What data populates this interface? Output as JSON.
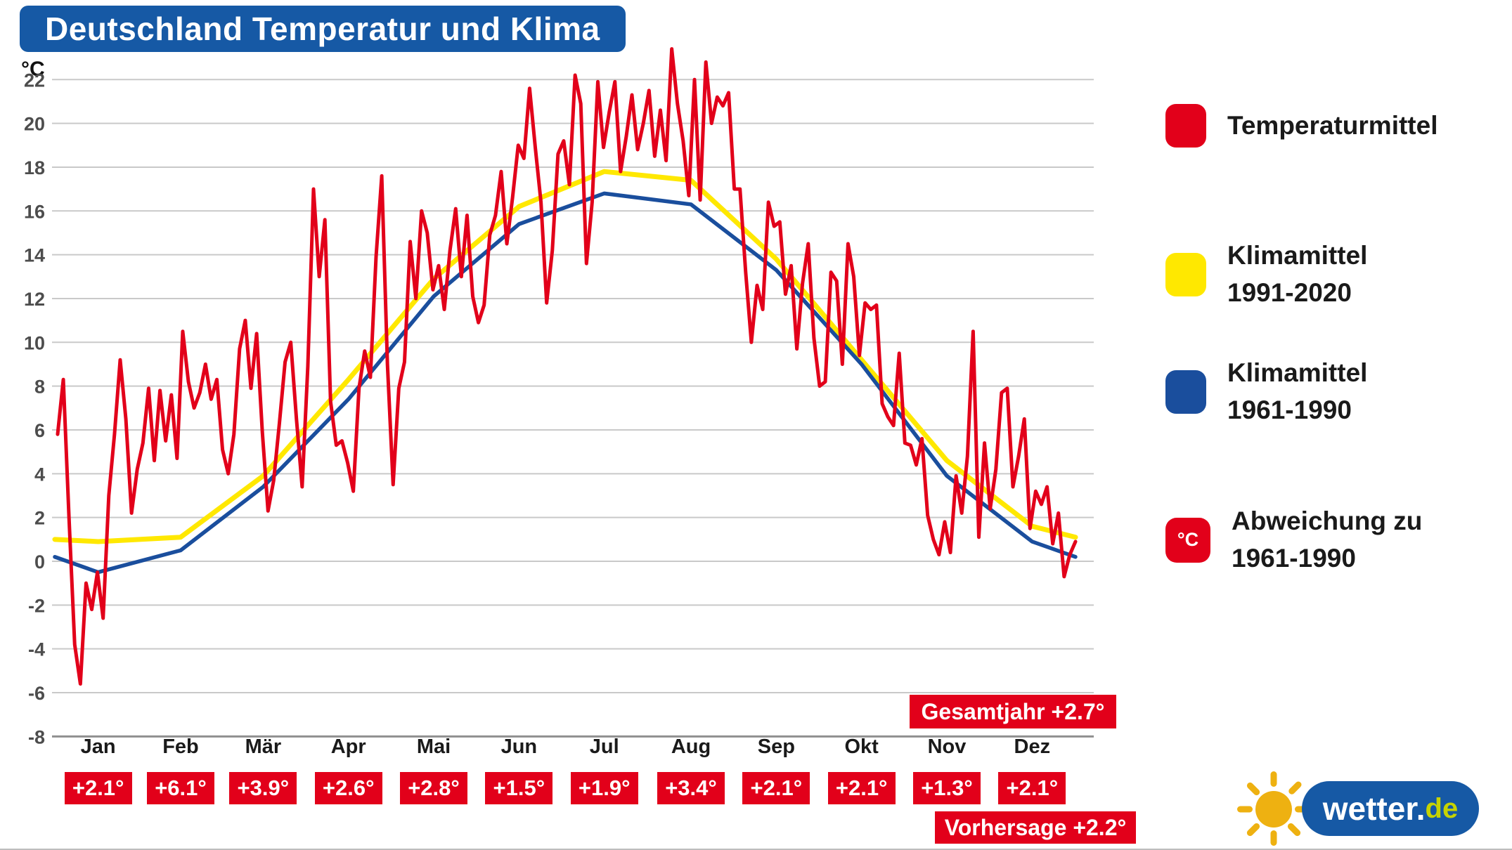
{
  "title": "Deutschland Temperatur und Klima",
  "y_axis_unit": "°C",
  "gesamtjahr_label": "Gesamtjahr +2.7°",
  "vorhersage_label": "Vorhersage +2.2°",
  "legend": {
    "items": [
      {
        "id": "temperaturmittel",
        "color": "#e2001a",
        "line1": "Temperaturmittel",
        "line2": ""
      },
      {
        "id": "klimamittel-1991-2020",
        "color": "#ffe800",
        "line1": "Klimamittel",
        "line2": "1991-2020"
      },
      {
        "id": "klimamittel-1961-1990",
        "color": "#1a4e9d",
        "line1": "Klimamittel",
        "line2": "1961-1990"
      },
      {
        "id": "abweichung",
        "color": "#e2001a",
        "icon_label": "°C",
        "line1": "Abweichung zu",
        "line2": "1961-1990"
      }
    ]
  },
  "logo": {
    "brand": "wetter",
    "dot": ".",
    "tld": "de"
  },
  "colors": {
    "banner_blue": "#1659a5",
    "series_red": "#e2001a",
    "series_yellow": "#ffe800",
    "series_blue": "#1a4e9d",
    "badge_red": "#e2001a",
    "grid": "#c9c9c9",
    "sun_yellow": "#eeb111",
    "logo_tld_green": "#c6d300"
  },
  "chart_data": {
    "type": "line",
    "title": "Deutschland Temperatur und Klima",
    "ylabel": "°C",
    "ylim": [
      -8,
      23.5
    ],
    "yticks": [
      22,
      20,
      18,
      16,
      14,
      12,
      10,
      8,
      6,
      4,
      2,
      0,
      -2,
      -4,
      -6,
      -8
    ],
    "grid": true,
    "legend_position": "right",
    "months": [
      "Jan",
      "Feb",
      "Mär",
      "Apr",
      "Mai",
      "Jun",
      "Jul",
      "Aug",
      "Sep",
      "Okt",
      "Nov",
      "Dez"
    ],
    "deviation_labels": [
      "+2.1°",
      "+6.1°",
      "+3.9°",
      "+2.6°",
      "+2.8°",
      "+1.5°",
      "+1.9°",
      "+3.4°",
      "+2.1°",
      "+2.1°",
      "+1.3°",
      "+2.1°"
    ],
    "monthly_deviation_vs_1961_1990": [
      2.1,
      6.1,
      3.9,
      2.6,
      2.8,
      1.5,
      1.9,
      3.4,
      2.1,
      2.1,
      1.3,
      2.1
    ],
    "gesamtjahr_deviation": 2.7,
    "vorhersage_deviation": 2.2,
    "series": [
      {
        "id": "klimamittel-1991-2020",
        "name": "Klimamittel 1991-2020",
        "color": "#ffe800",
        "width": 7,
        "days": [
          0,
          15.5,
          45,
          74.5,
          105,
          135.5,
          166,
          196.5,
          227.5,
          258,
          288.5,
          319,
          349.5,
          365
        ],
        "values": [
          1.0,
          0.9,
          1.1,
          3.9,
          8.3,
          12.9,
          16.2,
          17.8,
          17.4,
          13.8,
          9.2,
          4.6,
          1.6,
          1.1
        ]
      },
      {
        "id": "klimamittel-1961-1990",
        "name": "Klimamittel 1961-1990",
        "color": "#1a4e9d",
        "width": 5.5,
        "days": [
          0,
          15.5,
          45,
          74.5,
          105,
          135.5,
          166,
          196.5,
          227.5,
          258,
          288.5,
          319,
          349.5,
          365
        ],
        "values": [
          0.2,
          -0.5,
          0.5,
          3.4,
          7.4,
          12.1,
          15.4,
          16.8,
          16.3,
          13.3,
          9.0,
          3.9,
          0.9,
          0.2
        ]
      },
      {
        "id": "temperaturmittel",
        "name": "Temperaturmittel",
        "color": "#e2001a",
        "width": 5,
        "sampling": "daily mean temperature Germany, ~2-day samples Jan 1 to Dec 31",
        "values": [
          5.8,
          8.3,
          2.0,
          -3.8,
          -5.6,
          -1.0,
          -2.2,
          -0.5,
          -2.6,
          3.0,
          5.8,
          9.2,
          6.5,
          2.2,
          4.2,
          5.4,
          7.9,
          4.6,
          7.8,
          5.5,
          7.6,
          4.7,
          10.5,
          8.2,
          7.0,
          7.7,
          9.0,
          7.4,
          8.3,
          5.1,
          4.0,
          5.8,
          9.7,
          11.0,
          7.9,
          10.4,
          5.9,
          2.3,
          3.7,
          6.3,
          9.1,
          10.0,
          6.5,
          3.4,
          8.9,
          17.0,
          13.0,
          15.6,
          7.3,
          5.3,
          5.5,
          4.5,
          3.2,
          7.9,
          9.6,
          8.4,
          13.9,
          17.6,
          9.0,
          3.5,
          7.9,
          9.1,
          14.6,
          12.0,
          16.0,
          15.0,
          12.4,
          13.5,
          11.5,
          14.2,
          16.1,
          13.0,
          15.8,
          12.1,
          10.9,
          11.7,
          14.9,
          15.8,
          17.8,
          14.5,
          16.6,
          19.0,
          18.4,
          21.6,
          18.9,
          16.4,
          11.8,
          14.2,
          18.6,
          19.2,
          17.2,
          22.2,
          20.9,
          13.6,
          16.4,
          21.9,
          18.9,
          20.5,
          21.9,
          17.8,
          19.4,
          21.3,
          18.8,
          20.0,
          21.5,
          18.5,
          20.6,
          18.3,
          23.4,
          20.9,
          19.2,
          16.7,
          22.0,
          16.5,
          22.8,
          20.0,
          21.2,
          20.8,
          21.4,
          17.0,
          17.0,
          13.2,
          10.0,
          12.6,
          11.5,
          16.4,
          15.3,
          15.5,
          12.2,
          13.5,
          9.7,
          12.7,
          14.5,
          10.2,
          8.0,
          8.2,
          13.2,
          12.8,
          9.0,
          14.5,
          13.0,
          9.4,
          11.8,
          11.5,
          11.7,
          7.2,
          6.6,
          6.2,
          9.5,
          5.4,
          5.3,
          4.4,
          5.6,
          2.1,
          1.0,
          0.3,
          1.8,
          0.4,
          3.9,
          2.2,
          4.8,
          10.5,
          1.1,
          5.4,
          2.4,
          4.2,
          7.7,
          7.9,
          3.4,
          4.8,
          6.5,
          1.5,
          3.2,
          2.6,
          3.4,
          0.8,
          2.2,
          -0.7,
          0.3,
          0.9
        ]
      }
    ]
  }
}
